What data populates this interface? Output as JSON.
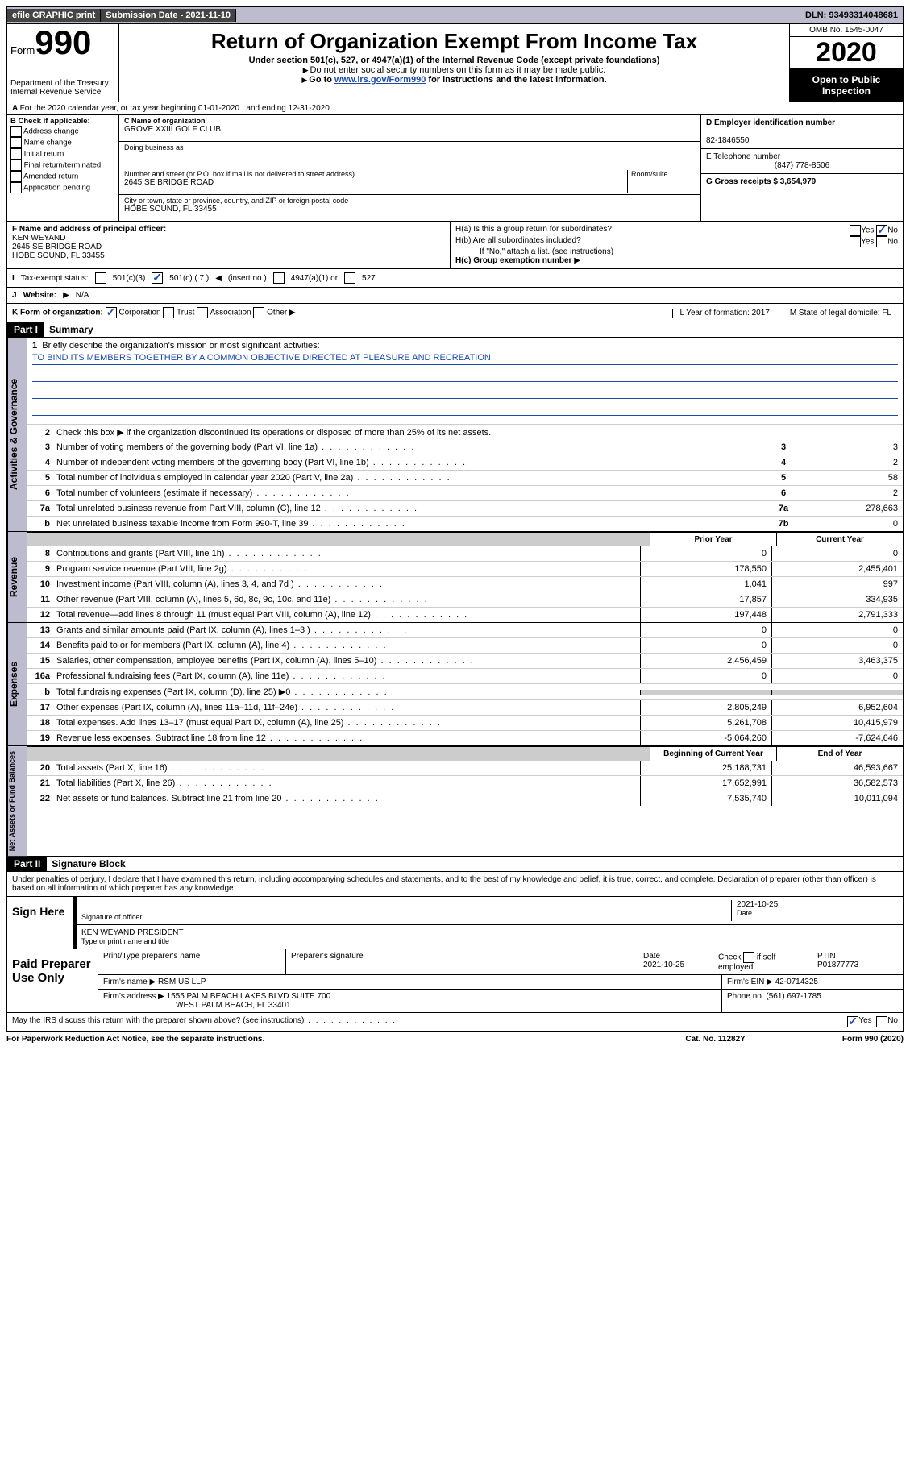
{
  "topbar": {
    "efile": "efile GRAPHIC print",
    "submission_label": "Submission Date - 2021-11-10",
    "dln": "DLN: 93493314048681"
  },
  "header": {
    "form_label": "Form",
    "form_number": "990",
    "dept": "Department of the Treasury",
    "irs": "Internal Revenue Service",
    "title": "Return of Organization Exempt From Income Tax",
    "subtitle": "Under section 501(c), 527, or 4947(a)(1) of the Internal Revenue Code (except private foundations)",
    "note1": "Do not enter social security numbers on this form as it may be made public.",
    "note2_pre": "Go to ",
    "note2_link": "www.irs.gov/Form990",
    "note2_post": " for instructions and the latest information.",
    "omb": "OMB No. 1545-0047",
    "year": "2020",
    "open": "Open to Public Inspection"
  },
  "sectionA": {
    "line": "For the 2020 calendar year, or tax year beginning 01-01-2020    , and ending 12-31-2020",
    "b_label": "B Check if applicable:",
    "b_opts": [
      "Address change",
      "Name change",
      "Initial return",
      "Final return/terminated",
      "Amended return",
      "Application pending"
    ],
    "c_name_label": "C Name of organization",
    "c_name": "GROVE XXIII GOLF CLUB",
    "dba_label": "Doing business as",
    "addr_label": "Number and street (or P.O. box if mail is not delivered to street address)",
    "room_label": "Room/suite",
    "addr": "2645 SE BRIDGE ROAD",
    "city_label": "City or town, state or province, country, and ZIP or foreign postal code",
    "city": "HOBE SOUND, FL  33455",
    "d_label": "D Employer identification number",
    "d_val": "82-1846550",
    "e_label": "E Telephone number",
    "e_val": "(847) 778-8506",
    "g_label": "G Gross receipts $ 3,654,979"
  },
  "sectionF": {
    "f_label": "F  Name and address of principal officer:",
    "f_name": "KEN WEYAND",
    "f_addr1": "2645 SE BRIDGE ROAD",
    "f_addr2": "HOBE SOUND, FL  33455",
    "ha": "H(a)  Is this a group return for subordinates?",
    "hb": "H(b)  Are all subordinates included?",
    "hb_note": "If \"No,\" attach a list. (see instructions)",
    "hc": "H(c)  Group exemption number",
    "yes": "Yes",
    "no": "No"
  },
  "statusRow": {
    "i": "I",
    "label": "Tax-exempt status:",
    "opt1": "501(c)(3)",
    "opt2": "501(c) ( 7 )",
    "opt2b": "(insert no.)",
    "opt3": "4947(a)(1) or",
    "opt4": "527"
  },
  "websiteRow": {
    "j": "J",
    "label": "Website:",
    "val": "N/A"
  },
  "kRow": {
    "k": "K Form of organization:",
    "opts": [
      "Corporation",
      "Trust",
      "Association",
      "Other"
    ],
    "l_label": "L Year of formation: 2017",
    "m_label": "M State of legal domicile: FL"
  },
  "part1": {
    "header": "Part I",
    "title": "Summary",
    "vtab1": "Activities & Governance",
    "line1_label": "Briefly describe the organization's mission or most significant activities:",
    "mission": "TO BIND ITS MEMBERS TOGETHER BY A COMMON OBJECTIVE DIRECTED AT PLEASURE AND RECREATION.",
    "line2": "Check this box ▶       if the organization discontinued its operations or disposed of more than 25% of its net assets.",
    "lines_gov": [
      {
        "n": "3",
        "d": "Number of voting members of the governing body (Part VI, line 1a)",
        "box": "3",
        "v": "3"
      },
      {
        "n": "4",
        "d": "Number of independent voting members of the governing body (Part VI, line 1b)",
        "box": "4",
        "v": "2"
      },
      {
        "n": "5",
        "d": "Total number of individuals employed in calendar year 2020 (Part V, line 2a)",
        "box": "5",
        "v": "58"
      },
      {
        "n": "6",
        "d": "Total number of volunteers (estimate if necessary)",
        "box": "6",
        "v": "2"
      },
      {
        "n": "7a",
        "d": "Total unrelated business revenue from Part VIII, column (C), line 12",
        "box": "7a",
        "v": "278,663"
      },
      {
        "n": "b",
        "d": "Net unrelated business taxable income from Form 990-T, line 39",
        "box": "7b",
        "v": "0"
      }
    ],
    "vtab2": "Revenue",
    "col_prior": "Prior Year",
    "col_current": "Current Year",
    "lines_rev": [
      {
        "n": "8",
        "d": "Contributions and grants (Part VIII, line 1h)",
        "p": "0",
        "c": "0"
      },
      {
        "n": "9",
        "d": "Program service revenue (Part VIII, line 2g)",
        "p": "178,550",
        "c": "2,455,401"
      },
      {
        "n": "10",
        "d": "Investment income (Part VIII, column (A), lines 3, 4, and 7d )",
        "p": "1,041",
        "c": "997"
      },
      {
        "n": "11",
        "d": "Other revenue (Part VIII, column (A), lines 5, 6d, 8c, 9c, 10c, and 11e)",
        "p": "17,857",
        "c": "334,935"
      },
      {
        "n": "12",
        "d": "Total revenue—add lines 8 through 11 (must equal Part VIII, column (A), line 12)",
        "p": "197,448",
        "c": "2,791,333"
      }
    ],
    "vtab3": "Expenses",
    "lines_exp": [
      {
        "n": "13",
        "d": "Grants and similar amounts paid (Part IX, column (A), lines 1–3 )",
        "p": "0",
        "c": "0"
      },
      {
        "n": "14",
        "d": "Benefits paid to or for members (Part IX, column (A), line 4)",
        "p": "0",
        "c": "0"
      },
      {
        "n": "15",
        "d": "Salaries, other compensation, employee benefits (Part IX, column (A), lines 5–10)",
        "p": "2,456,459",
        "c": "3,463,375"
      },
      {
        "n": "16a",
        "d": "Professional fundraising fees (Part IX, column (A), line 11e)",
        "p": "0",
        "c": "0"
      },
      {
        "n": "b",
        "d": "Total fundraising expenses (Part IX, column (D), line 25) ▶0",
        "p": "",
        "c": "",
        "grey": true
      },
      {
        "n": "17",
        "d": "Other expenses (Part IX, column (A), lines 11a–11d, 11f–24e)",
        "p": "2,805,249",
        "c": "6,952,604"
      },
      {
        "n": "18",
        "d": "Total expenses. Add lines 13–17 (must equal Part IX, column (A), line 25)",
        "p": "5,261,708",
        "c": "10,415,979"
      },
      {
        "n": "19",
        "d": "Revenue less expenses. Subtract line 18 from line 12",
        "p": "-5,064,260",
        "c": "-7,624,646"
      }
    ],
    "vtab4": "Net Assets or Fund Balances",
    "col_begin": "Beginning of Current Year",
    "col_end": "End of Year",
    "lines_net": [
      {
        "n": "20",
        "d": "Total assets (Part X, line 16)",
        "p": "25,188,731",
        "c": "46,593,667"
      },
      {
        "n": "21",
        "d": "Total liabilities (Part X, line 26)",
        "p": "17,652,991",
        "c": "36,582,573"
      },
      {
        "n": "22",
        "d": "Net assets or fund balances. Subtract line 21 from line 20",
        "p": "7,535,740",
        "c": "10,011,094"
      }
    ]
  },
  "part2": {
    "header": "Part II",
    "title": "Signature Block",
    "declaration": "Under penalties of perjury, I declare that I have examined this return, including accompanying schedules and statements, and to the best of my knowledge and belief, it is true, correct, and complete. Declaration of preparer (other than officer) is based on all information of which preparer has any knowledge."
  },
  "sign": {
    "left": "Sign Here",
    "sig_label": "Signature of officer",
    "date_label": "Date",
    "date": "2021-10-25",
    "name": "KEN WEYAND  PRESIDENT",
    "name_label": "Type or print name and title"
  },
  "prep": {
    "left": "Paid Preparer Use Only",
    "h1": "Print/Type preparer's name",
    "h2": "Preparer's signature",
    "h3": "Date",
    "h3v": "2021-10-25",
    "h4": "Check       if self-employed",
    "h5": "PTIN",
    "h5v": "P01877773",
    "firm_label": "Firm's name    ▶",
    "firm": "RSM US LLP",
    "ein_label": "Firm's EIN ▶",
    "ein": "42-0714325",
    "addr_label": "Firm's address ▶",
    "addr": "1555 PALM BEACH LAKES BLVD SUITE 700",
    "addr2": "WEST PALM BEACH, FL  33401",
    "phone_label": "Phone no.",
    "phone": "(561) 697-1785"
  },
  "discuss": {
    "q": "May the IRS discuss this return with the preparer shown above? (see instructions)",
    "yes": "Yes",
    "no": "No"
  },
  "footer": {
    "l": "For Paperwork Reduction Act Notice, see the separate instructions.",
    "c": "Cat. No. 11282Y",
    "r": "Form 990 (2020)"
  }
}
